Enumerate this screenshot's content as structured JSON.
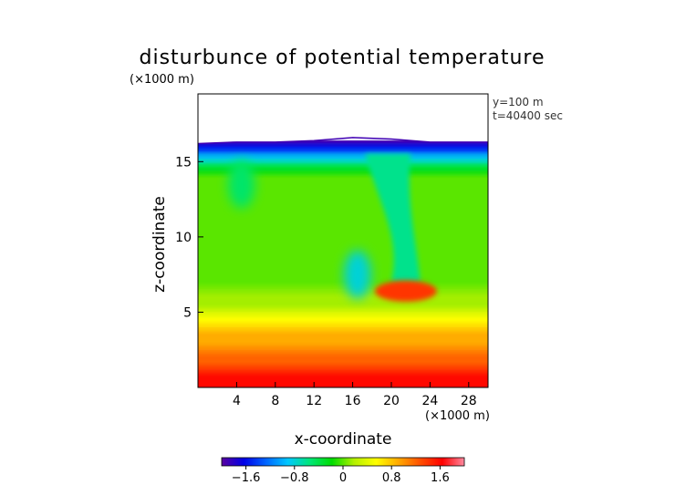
{
  "chart_data": {
    "type": "heatmap",
    "title": "disturbunce of potential temperature",
    "xlabel": "x-coordinate",
    "ylabel": "z-coordinate",
    "x_unit": "(×1000 m)",
    "z_unit": "(×1000 m)",
    "annotations": [
      "y=100 m",
      "t=40400 sec"
    ],
    "xlim": [
      0,
      30
    ],
    "ylim": [
      0,
      19.5
    ],
    "x_ticks": [
      4,
      8,
      12,
      16,
      20,
      24,
      28
    ],
    "x_tick_labels": [
      "4",
      "8",
      "12",
      "16",
      "20",
      "24",
      "28"
    ],
    "y_ticks": [
      5,
      10,
      15
    ],
    "y_tick_labels": [
      "5",
      "10",
      "15"
    ],
    "grid": false,
    "legend": "colorbar-bottom",
    "colorbar": {
      "range": [
        -2.0,
        2.0
      ],
      "ticks": [
        -1.6,
        -0.8,
        0,
        0.8,
        1.6
      ],
      "tick_labels": [
        "−1.6",
        "−0.8",
        "0",
        "0.8",
        "1.6"
      ],
      "colors": [
        "#5a00a0",
        "#0000e6",
        "#0064ff",
        "#00c8ff",
        "#00e678",
        "#00dc00",
        "#b4f000",
        "#ffff00",
        "#ffaa00",
        "#ff5000",
        "#ff0000",
        "#ff8aa0"
      ]
    },
    "field_description": {
      "domain_top_z": [
        [
          0,
          16.2
        ],
        [
          4,
          16.3
        ],
        [
          8,
          16.3
        ],
        [
          12,
          16.4
        ],
        [
          16,
          16.6
        ],
        [
          20,
          16.5
        ],
        [
          24,
          16.3
        ],
        [
          28,
          16.3
        ],
        [
          30,
          16.3
        ]
      ],
      "horizontal_bands": [
        {
          "z_from": 16.4,
          "z_to": 16.0,
          "value": -2.0
        },
        {
          "z_from": 16.0,
          "z_to": 15.2,
          "value": -1.2
        },
        {
          "z_from": 15.2,
          "z_to": 14.4,
          "value": -0.5
        },
        {
          "z_from": 14.4,
          "z_to": 6.5,
          "value": 0.0
        },
        {
          "z_from": 6.5,
          "z_to": 5.0,
          "value": 0.15
        },
        {
          "z_from": 5.0,
          "z_to": 4.0,
          "value": 0.55
        },
        {
          "z_from": 4.0,
          "z_to": 2.5,
          "value": 0.9
        },
        {
          "z_from": 2.5,
          "z_to": 1.2,
          "value": 1.2
        },
        {
          "z_from": 1.2,
          "z_to": 0.0,
          "value": 1.6
        }
      ],
      "features": [
        {
          "name": "cold plume",
          "x": 19.5,
          "z_top": 15.5,
          "z_bottom": 7.0,
          "value": -0.6
        },
        {
          "name": "cold eddy",
          "x": 4.5,
          "z": 13.5,
          "value": -0.5
        },
        {
          "name": "cold tongue",
          "x": 16.5,
          "z": 7.5,
          "value": -0.8
        },
        {
          "name": "warm anomaly",
          "x": 21.5,
          "z": 6.4,
          "value": 1.4
        }
      ]
    }
  }
}
